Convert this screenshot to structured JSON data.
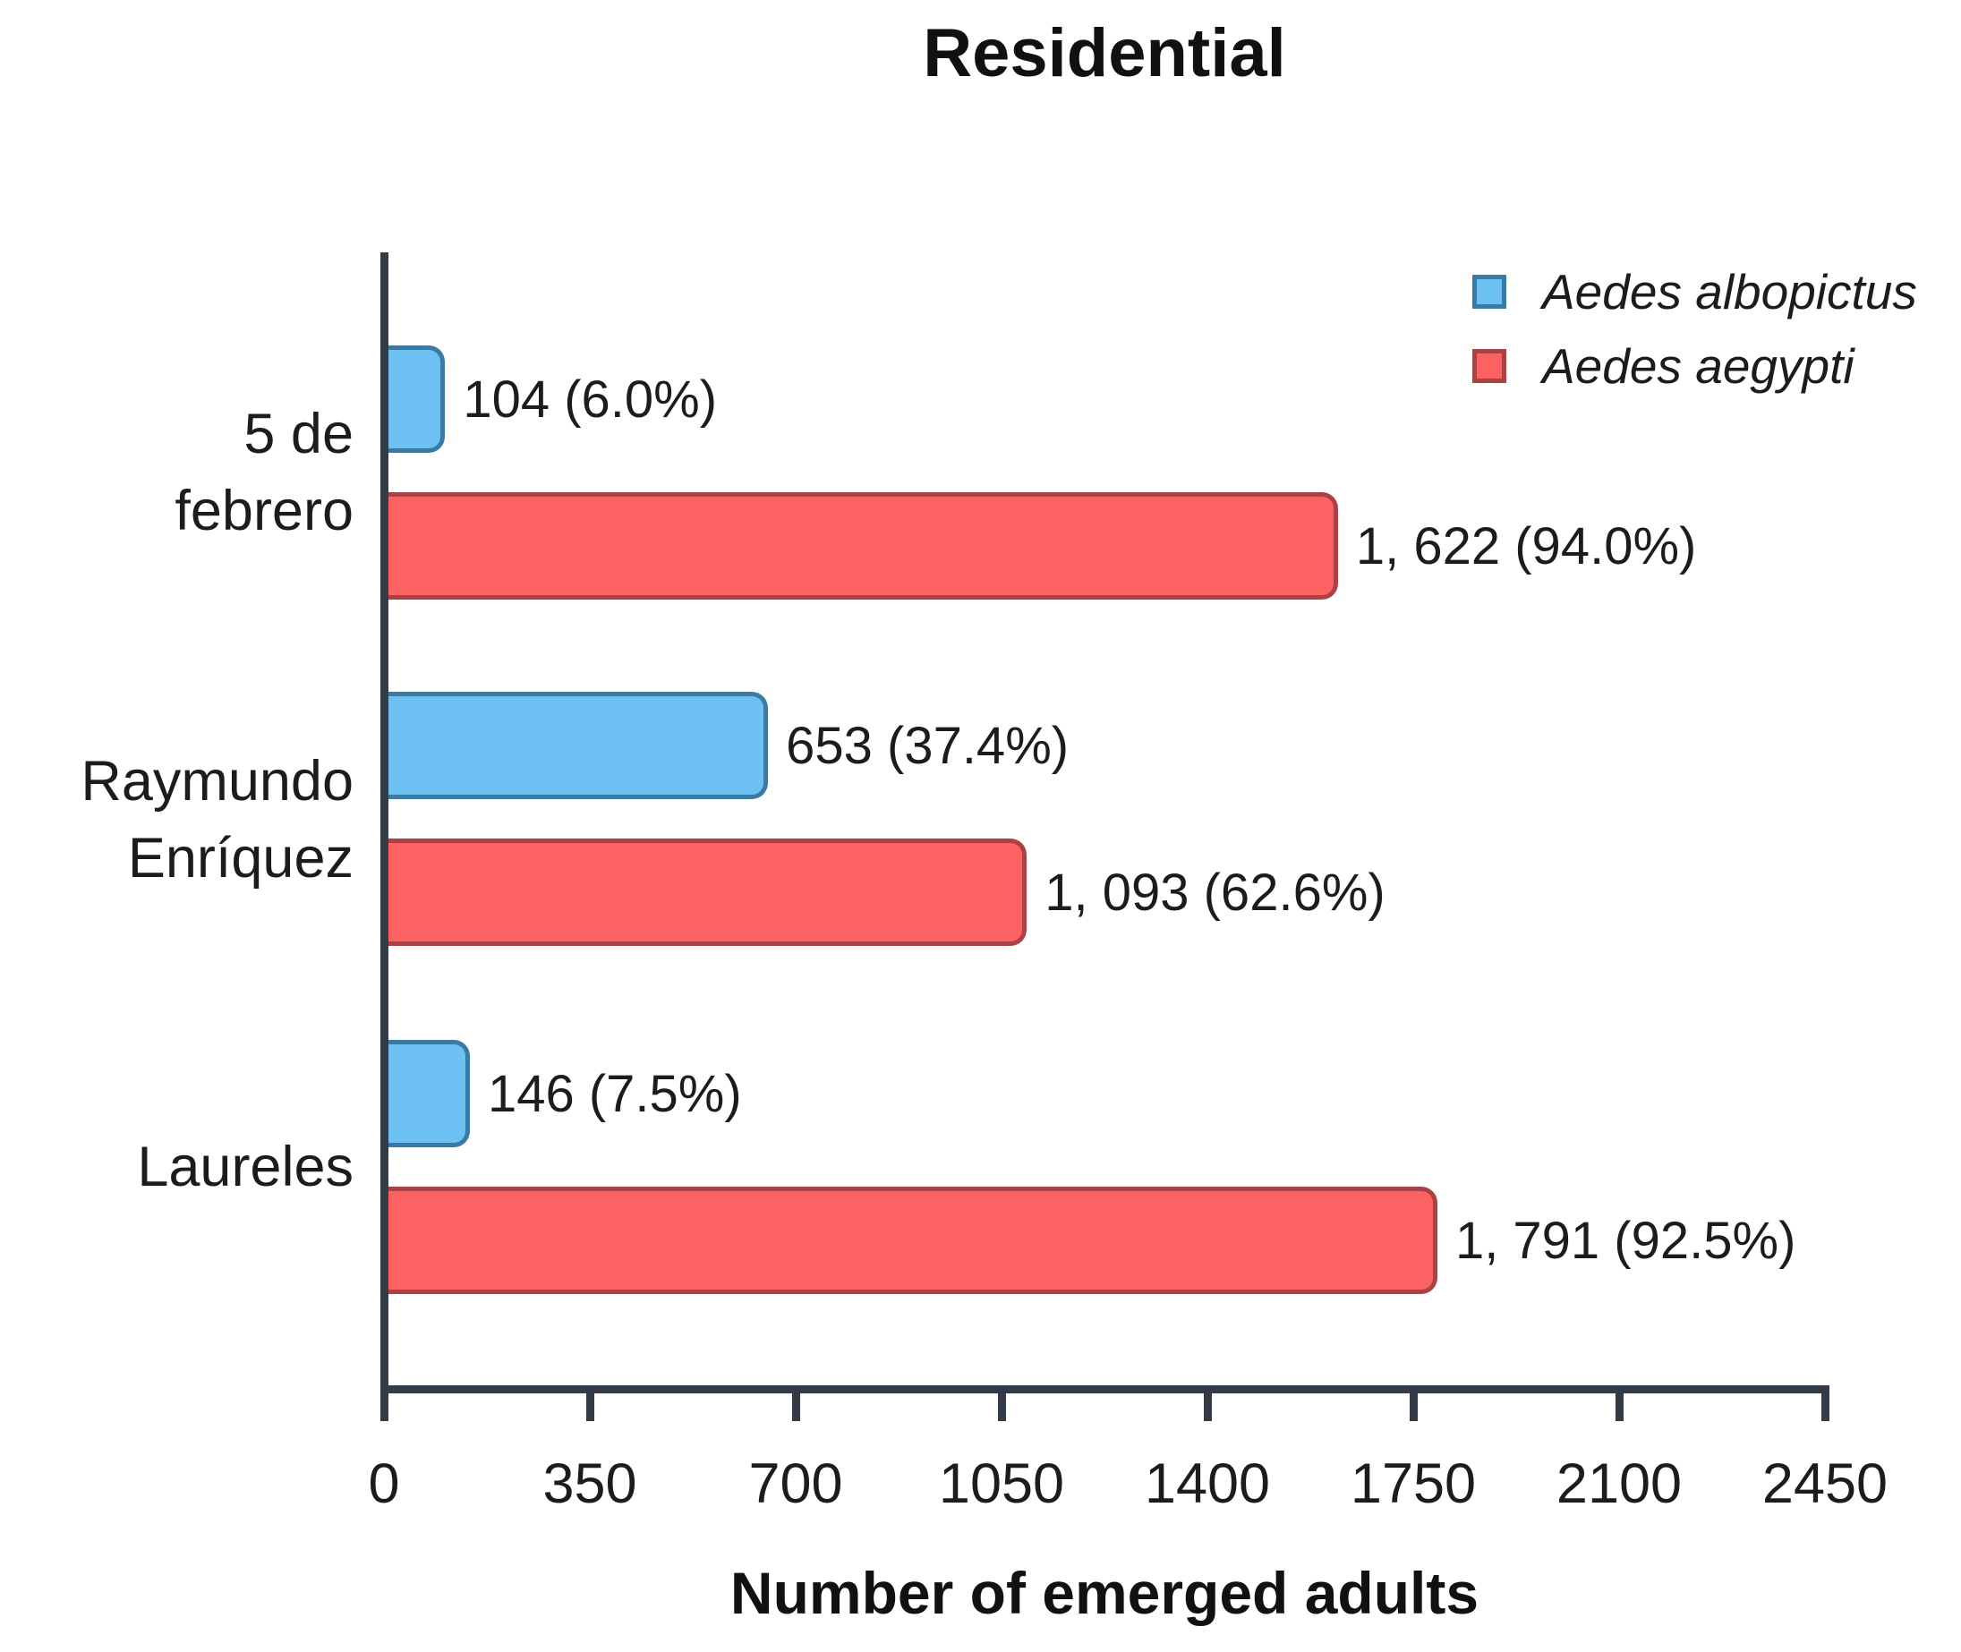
{
  "title": "Residential",
  "x_axis": {
    "label": "Number of emerged adults",
    "ticks": [
      "0",
      "350",
      "700",
      "1050",
      "1400",
      "1750",
      "2100",
      "2450"
    ]
  },
  "legend": {
    "items": [
      {
        "label": "Aedes albopictus",
        "color": "#6cc0f2",
        "border": "#3a7ba5"
      },
      {
        "label": "Aedes aegypti",
        "color": "#fd6262",
        "border": "#ab4145"
      }
    ]
  },
  "colors": {
    "axis": "#333b48",
    "albopictus_fill": "#6cc0f2",
    "albopictus_border": "#3a7ba5",
    "aegypti_fill": "#fd6262",
    "aegypti_border": "#ab4145",
    "text": "#1c1c1c"
  },
  "chart_data": {
    "type": "bar",
    "orientation": "horizontal",
    "title": "Residential",
    "xlabel": "Number of emerged adults",
    "xlim": [
      0,
      2450
    ],
    "xticks": [
      0,
      350,
      700,
      1050,
      1400,
      1750,
      2100,
      2450
    ],
    "grid": false,
    "legend_position": "top-right",
    "categories": [
      "5 de febrero",
      "Raymundo Enríquez",
      "Laureles"
    ],
    "category_display_lines": [
      [
        "5 de",
        "febrero"
      ],
      [
        "Raymundo",
        "Enríquez"
      ],
      [
        "Laureles"
      ]
    ],
    "series": [
      {
        "name": "Aedes albopictus",
        "color": "#6cc0f2",
        "border_color": "#3a7ba5",
        "values": [
          104,
          653,
          146
        ],
        "value_labels": [
          "104 (6.0%)",
          "653 (37.4%)",
          "146 (7.5%)"
        ]
      },
      {
        "name": "Aedes aegypti",
        "color": "#fd6262",
        "border_color": "#ab4145",
        "values": [
          1622,
          1093,
          1791
        ],
        "value_labels": [
          "1, 622 (94.0%)",
          "1, 093 (62.6%)",
          "1, 791 (92.5%)"
        ]
      }
    ]
  }
}
